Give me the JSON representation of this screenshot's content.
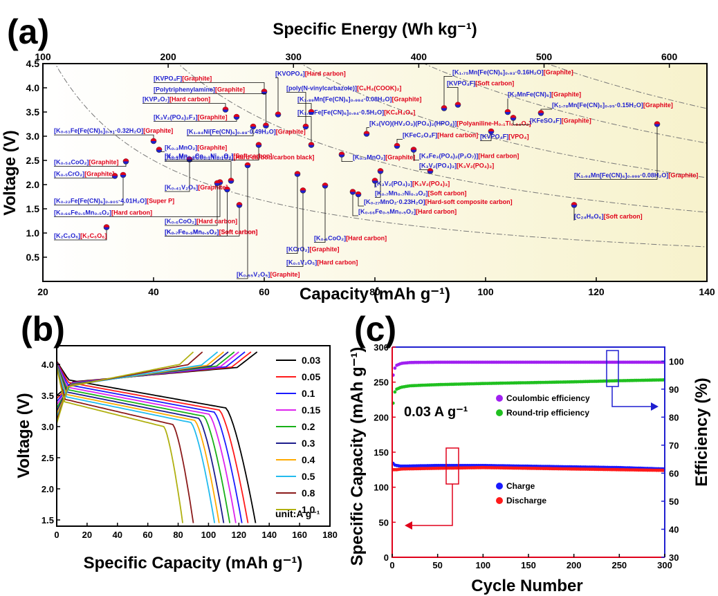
{
  "panel_a": {
    "letter": "(a)",
    "top_axis_title": "Specific Energy (Wh kg⁻¹)",
    "x_axis_title": "Capacity (mAh g⁻¹)",
    "y_axis_title": "Voltage (V)",
    "colors": {
      "anode": "#e0001a",
      "cathode": "#1f1fd0"
    }
  },
  "panel_b": {
    "letter": "(b)",
    "x_axis_title": "Specific Capacity (mAh g⁻¹)",
    "y_axis_title": "Voltage (V)",
    "legend_unit": "unit:A g⁻¹"
  },
  "panel_c": {
    "letter": "(c)",
    "x_axis_title": "Cycle Number",
    "y_left_title": "Specific Capacity (mAh g⁻¹)",
    "y_right_title": "Efficiency (%)",
    "current_label": "0.03 A g⁻¹",
    "left_color": "#e0001a",
    "right_color": "#1f1fd0"
  },
  "chart_data": [
    {
      "type": "scatter",
      "xlabel": "Capacity (mAh g⁻¹)",
      "ylabel": "Voltage (V)",
      "x2label": "Specific Energy (Wh kg⁻¹)",
      "xlim": [
        20,
        140
      ],
      "ylim": [
        0.0,
        4.5
      ],
      "x2lim": [
        100,
        630
      ],
      "xticks": [
        20,
        40,
        60,
        80,
        100,
        120,
        140
      ],
      "yticks": [
        0.5,
        1.0,
        1.5,
        2.0,
        2.5,
        3.0,
        3.5,
        4.0,
        4.5
      ],
      "x2ticks": [
        100,
        200,
        300,
        400,
        500,
        600
      ],
      "iso_energy_curves_Whkg": [
        100,
        200,
        300,
        400,
        500
      ],
      "points": [
        {
          "x": 31.5,
          "y": 1.12,
          "cathode": "K₂C₆O₆",
          "anode": "K₂C₆O₆",
          "lx": 22,
          "ly": 0.9
        },
        {
          "x": 33.0,
          "y": 2.18,
          "cathode": "K₀.₅CrO₂",
          "anode": "Graphite",
          "lx": 22,
          "ly": 2.18
        },
        {
          "x": 35.0,
          "y": 2.48,
          "cathode": "K₀.₅₄CoO₂",
          "anode": "Graphite",
          "lx": 22,
          "ly": 2.42
        },
        {
          "x": 34.5,
          "y": 2.2,
          "cathode": "K₀.₂₂Fe[Fe(CN)₆]₀.₈₀₅·4.01H₂O",
          "anode": "Super P",
          "lx": 22,
          "ly": 1.62
        },
        {
          "x": 40.0,
          "y": 2.9,
          "cathode": "K₀.₆₁Fe[Fe(CN)₆]₀.₉₁·0.32H₂O",
          "anode": "Graphite",
          "lx": 22,
          "ly": 3.07
        },
        {
          "x": 41.0,
          "y": 2.72,
          "cathode": "K₀.₃MnO₂",
          "anode": "Graphite",
          "lx": 42,
          "ly": 2.72
        },
        {
          "x": 46.5,
          "y": 2.52,
          "cathode": "K₀.₄₁V₂O₅",
          "anode": "Graphite",
          "lx": 42,
          "ly": 1.9
        },
        {
          "x": 52.0,
          "y": 2.05,
          "cathode": "K₀.₆₆Fe₀.₅Mn₀.₅O₂",
          "anode": "Hard carbon",
          "lx": 22,
          "ly": 1.38
        },
        {
          "x": 51.5,
          "y": 2.03,
          "cathode": "K₀.₆CoO₂",
          "anode": "Hard carbon",
          "lx": 42,
          "ly": 1.2
        },
        {
          "x": 53.0,
          "y": 3.55,
          "cathode": "KVP₂O₇",
          "anode": "Hard carbon",
          "lx": 38,
          "ly": 3.72
        },
        {
          "x": 53.3,
          "y": 1.9,
          "cathode": "K₀.₇Fe₀.₅Mn₀.₅O₂",
          "anode": "Soft carbon",
          "lx": 42,
          "ly": 0.98
        },
        {
          "x": 54.0,
          "y": 2.08,
          "cathode": "K₀.₃Mn₀.₉Co₀.₁Ni₀.₁O₂",
          "anode": "Hard carbon/carbon black",
          "lx": 42,
          "ly": 2.52
        },
        {
          "x": 55.0,
          "y": 3.4,
          "cathode": "K₃V₂(PO₄)₂F₃",
          "anode": "Graphite",
          "lx": 40,
          "ly": 3.35
        },
        {
          "x": 55.5,
          "y": 1.58,
          "cathode": "K₀.₇Fe₀.₅Mn₀.₅O₂",
          "anode": "Soft carbon",
          "lx": 42,
          "ly": 0.98
        },
        {
          "x": 57.0,
          "y": 2.4,
          "cathode": "K₀.₅₅V₂O₅",
          "anode": "Graphite",
          "lx": 55,
          "ly": 0.1
        },
        {
          "x": 58.0,
          "y": 3.2,
          "cathode": "K₁.₈₄Ni[Fe(CN)₆]₀.₈₈·0.49H₂O",
          "anode": "Graphite",
          "lx": 46,
          "ly": 3.05
        },
        {
          "x": 59.0,
          "y": 2.82,
          "cathode": "K₀.₈Mn₀.₉Co₀.₁Ni₀.₁O₂",
          "anode": "Soft carbon",
          "lx": 42,
          "ly": 2.55
        },
        {
          "x": 60.0,
          "y": 3.92,
          "cathode": "KVPO₄F",
          "anode": "Graphite",
          "lx": 40,
          "ly": 4.15
        },
        {
          "x": 60.3,
          "y": 3.22,
          "cathode": "Polytriphenylamine",
          "anode": "Graphite",
          "lx": 40,
          "ly": 3.92
        },
        {
          "x": 62.5,
          "y": 3.45,
          "cathode": "KVOPO₄",
          "anode": "Hard carbon",
          "lx": 62,
          "ly": 4.25
        },
        {
          "x": 66.0,
          "y": 2.22,
          "cathode": "KCrO₂",
          "anode": "Graphite",
          "lx": 64,
          "ly": 0.62
        },
        {
          "x": 67.0,
          "y": 1.88,
          "cathode": "K₀.₅V₂O₅",
          "anode": "Hard carbon",
          "lx": 64,
          "ly": 0.35
        },
        {
          "x": 67.5,
          "y": 3.2,
          "cathode": "poly(N-vinylcarbazole)",
          "anode": "C₆H₄(COOK)₂",
          "lx": 64,
          "ly": 3.95
        },
        {
          "x": 68.5,
          "y": 3.5,
          "cathode": "K₁.₈₉Mn[Fe(CN)₆]₀.₉₉₄·0.08H₂O",
          "anode": "Graphite",
          "lx": 66,
          "ly": 3.72
        },
        {
          "x": 68.5,
          "y": 2.82,
          "cathode": "K₁.₆₄Fe[Fe(CN)₆]₀.₉₄·0.5H₂O",
          "anode": "KC₆H₄O₄",
          "lx": 66,
          "ly": 3.45
        },
        {
          "x": 71.0,
          "y": 1.98,
          "cathode": "K₀.₆CoO₂",
          "anode": "Hard carbon",
          "lx": 69,
          "ly": 0.85
        },
        {
          "x": 74.0,
          "y": 2.62,
          "cathode": "K₀.₃MnO₂",
          "anode": "Graphite",
          "lx": 76,
          "ly": 2.52
        },
        {
          "x": 76.0,
          "y": 1.85,
          "cathode": "K₀.₆₆Fe₀.₅Mn₀.₅O₂",
          "anode": "Hard carbon",
          "lx": 77,
          "ly": 1.4
        },
        {
          "x": 77.0,
          "y": 1.8,
          "cathode": "K₀.₂₇MnO₂·0.23H₂O",
          "anode": "Hard-soft composite carbon",
          "lx": 78,
          "ly": 1.6
        },
        {
          "x": 78.5,
          "y": 3.05,
          "cathode": "K₃(VO)(HV₂O₃)(PO₄)₂(HPO₄)",
          "anode": "Polyaniline-H₀.₁Ti₀.₈₄O₂",
          "lx": 79,
          "ly": 3.22
        },
        {
          "x": 80.0,
          "y": 2.08,
          "cathode": "K₃V₂(PO₄)₃",
          "anode": "K₃V₂(PO₄)₃",
          "lx": 80,
          "ly": 1.98
        },
        {
          "x": 81.0,
          "y": 2.28,
          "cathode": "K₀.₇Mn₀.₇Ni₀.₃O₂",
          "anode": "Soft carbon",
          "lx": 80,
          "ly": 1.78
        },
        {
          "x": 84.0,
          "y": 2.8,
          "cathode": "KFeC₂O₄F",
          "anode": "Hard carbon",
          "lx": 85,
          "ly": 2.98
        },
        {
          "x": 87.0,
          "y": 2.72,
          "cathode": "K₄Fe₃(PO₄)₂(P₂O₇)",
          "anode": "Hard carbon",
          "lx": 88,
          "ly": 2.55
        },
        {
          "x": 90.0,
          "y": 2.28,
          "cathode": "K₃V₂(PO₄)₃",
          "anode": "K₃V₂(PO₄)₃",
          "lx": 88,
          "ly": 2.35
        },
        {
          "x": 92.5,
          "y": 3.58,
          "cathode": "K₁.₇₅Mn[Fe(CN)₆]₀.₉₃·0.16H₂O",
          "anode": "Graphite",
          "lx": 94,
          "ly": 4.28
        },
        {
          "x": 95.0,
          "y": 3.65,
          "cathode": "KVPO₄F",
          "anode": "Soft carbon",
          "lx": 93,
          "ly": 4.05
        },
        {
          "x": 101.0,
          "y": 3.1,
          "cathode": "KVPO₄F",
          "anode": "VPO₄",
          "lx": 99,
          "ly": 2.95
        },
        {
          "x": 104.0,
          "y": 3.5,
          "cathode": "K₂MnFe(CN)₆",
          "anode": "Graphite",
          "lx": 104,
          "ly": 3.82
        },
        {
          "x": 105.0,
          "y": 3.38,
          "cathode": "KFeSO₄F",
          "anode": "Graphite",
          "lx": 108,
          "ly": 3.28
        },
        {
          "x": 110.0,
          "y": 3.48,
          "cathode": "K₁.₇₈Mn[Fe(CN)₆]₀.₉₅·0.15H₂O",
          "anode": "Graphite",
          "lx": 112,
          "ly": 3.6
        },
        {
          "x": 116.0,
          "y": 1.58,
          "cathode": "C₂₄H₈O₆",
          "anode": "Soft carbon",
          "lx": 116,
          "ly": 1.3
        },
        {
          "x": 131.0,
          "y": 3.25,
          "cathode": "K₁.₉₄Mn[Fe(CN)₆]₀.₉₉₉·0.08H₂O",
          "anode": "Graphite",
          "lx": 116,
          "ly": 2.15
        }
      ]
    },
    {
      "type": "line",
      "xlabel": "Specific Capacity (mAh g⁻¹)",
      "ylabel": "Voltage (V)",
      "xlim": [
        0,
        180
      ],
      "ylim": [
        1.4,
        4.3
      ],
      "xticks": [
        0,
        20,
        40,
        60,
        80,
        100,
        120,
        140,
        160,
        180
      ],
      "yticks": [
        1.5,
        2.0,
        2.5,
        3.0,
        3.5,
        4.0
      ],
      "legend_title": "unit:A g⁻¹",
      "legend_position": "right",
      "series": [
        {
          "name": "0.03",
          "color": "#000000",
          "charge_max": 132,
          "discharge_max": 131
        },
        {
          "name": "0.05",
          "color": "#ff1a1a",
          "charge_max": 128,
          "discharge_max": 126
        },
        {
          "name": "0.1",
          "color": "#1a1aff",
          "charge_max": 124,
          "discharge_max": 122
        },
        {
          "name": "0.15",
          "color": "#dd22ee",
          "charge_max": 120,
          "discharge_max": 118
        },
        {
          "name": "0.2",
          "color": "#18b018",
          "charge_max": 117,
          "discharge_max": 114
        },
        {
          "name": "0.3",
          "color": "#1c1c8c",
          "charge_max": 113,
          "discharge_max": 110
        },
        {
          "name": "0.4",
          "color": "#ffaa00",
          "charge_max": 110,
          "discharge_max": 107
        },
        {
          "name": "0.5",
          "color": "#22bbee",
          "charge_max": 106,
          "discharge_max": 104
        },
        {
          "name": "0.8",
          "color": "#8b1a1a",
          "charge_max": 96,
          "discharge_max": 90
        },
        {
          "name": "1.0",
          "color": "#b0b010",
          "charge_max": 90,
          "discharge_max": 83
        }
      ]
    },
    {
      "type": "scatter",
      "xlabel": "Cycle Number",
      "ylabel": "Specific Capacity (mAh g⁻¹)",
      "y2label": "Efficiency (%)",
      "xlim": [
        0,
        300
      ],
      "ylim": [
        0,
        300
      ],
      "y2lim": [
        30,
        105
      ],
      "xticks": [
        0,
        50,
        100,
        150,
        200,
        250,
        300
      ],
      "yticks": [
        0,
        50,
        100,
        150,
        200,
        250,
        300
      ],
      "y2ticks": [
        30,
        40,
        50,
        60,
        70,
        80,
        90,
        100
      ],
      "series": [
        {
          "name": "Coulombic efficiency",
          "axis": "right",
          "color": "#a020f0",
          "x": [
            1,
            2,
            3,
            5,
            10,
            20,
            50,
            100,
            150,
            200,
            250,
            300
          ],
          "values": [
            95,
            96.5,
            97.5,
            98.5,
            99.2,
            99.5,
            99.6,
            99.6,
            99.6,
            99.6,
            99.6,
            99.6
          ]
        },
        {
          "name": "Round-trip efficiency",
          "axis": "right",
          "color": "#20c020",
          "x": [
            1,
            2,
            3,
            5,
            10,
            20,
            50,
            100,
            150,
            200,
            250,
            300
          ],
          "values": [
            85,
            87.5,
            89,
            90,
            90.7,
            91.2,
            91.6,
            92.0,
            92.3,
            92.6,
            93.0,
            93.3
          ]
        },
        {
          "name": "Charge",
          "axis": "left",
          "color": "#1a1aff",
          "x": [
            1,
            2,
            5,
            10,
            50,
            100,
            150,
            200,
            250,
            300
          ],
          "values": [
            134,
            132,
            131,
            130,
            131,
            131,
            130,
            129,
            128,
            126
          ]
        },
        {
          "name": "Discharge",
          "axis": "left",
          "color": "#ff1a1a",
          "x": [
            1,
            2,
            5,
            10,
            50,
            100,
            150,
            200,
            250,
            300
          ],
          "values": [
            125,
            125,
            125,
            126,
            127,
            128,
            127,
            126,
            125,
            124
          ]
        }
      ]
    }
  ]
}
